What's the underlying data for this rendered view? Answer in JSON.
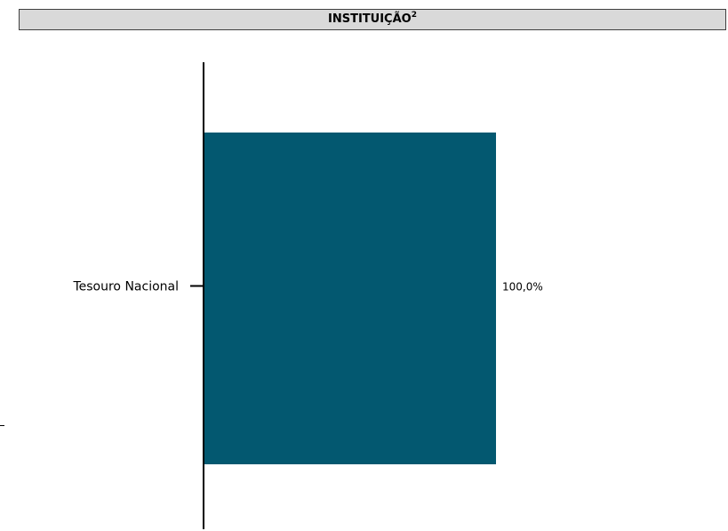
{
  "header": {
    "title": "INSTITUIÇÃO",
    "title_superscript": "2"
  },
  "chart_data": {
    "type": "bar",
    "orientation": "horizontal",
    "categories": [
      "Tesouro Nacional"
    ],
    "values": [
      100.0
    ],
    "data_labels": [
      "100,0%"
    ],
    "xlim": [
      0,
      100
    ],
    "bar_color": "#035870",
    "title": "INSTITUIÇÃO",
    "grid": false,
    "legend": "none"
  }
}
